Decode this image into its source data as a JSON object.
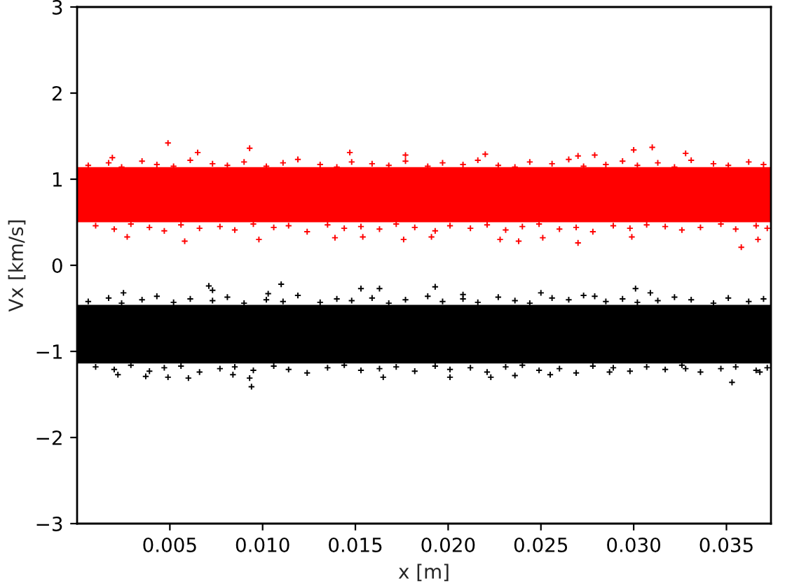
{
  "chart_data": {
    "type": "scatter",
    "xlabel": "x [m]",
    "ylabel": "Vx [km/s]",
    "xlim": [
      0,
      0.0374
    ],
    "ylim": [
      -3,
      3
    ],
    "xticks": [
      0.005,
      {
        "value": 0.01,
        "label": "0.010"
      },
      0.015,
      {
        "value": 0.02,
        "label": "0.020"
      },
      0.025,
      {
        "value": 0.03,
        "label": "0.030"
      },
      0.035
    ],
    "yticks": [
      {
        "value": -3,
        "label": "−3"
      },
      {
        "value": -2,
        "label": "−2"
      },
      {
        "value": -1,
        "label": "−1"
      },
      0,
      1,
      2,
      3
    ],
    "marker": "cross",
    "bands": [
      {
        "axis": "y",
        "from": 0.5,
        "to": 1.14,
        "color": "#ff0000"
      },
      {
        "axis": "y",
        "from": -1.14,
        "to": -0.46,
        "color": "#000000"
      }
    ],
    "series": [
      {
        "color": "#ff0000",
        "x": [
          0.0006,
          0.0017,
          0.0024,
          0.0035,
          0.0043,
          0.0052,
          0.0061,
          0.0073,
          0.0081,
          0.009,
          0.0102,
          0.0111,
          0.0119,
          0.0131,
          0.014,
          0.0148,
          0.0159,
          0.0168,
          0.0177,
          0.0189,
          0.0197,
          0.0208,
          0.0216,
          0.0227,
          0.0236,
          0.0244,
          0.0256,
          0.0265,
          0.0273,
          0.0285,
          0.0294,
          0.0302,
          0.0313,
          0.0322,
          0.0331,
          0.0343,
          0.0351,
          0.0362,
          0.037,
          0.001,
          0.002,
          0.0029,
          0.0039,
          0.0047,
          0.0056,
          0.0066,
          0.0077,
          0.0085,
          0.0095,
          0.0106,
          0.0114,
          0.0124,
          0.0135,
          0.0144,
          0.0153,
          0.0163,
          0.0172,
          0.0182,
          0.0193,
          0.0201,
          0.0212,
          0.0221,
          0.0231,
          0.024,
          0.0249,
          0.026,
          0.0269,
          0.0278,
          0.0289,
          0.0298,
          0.0307,
          0.0317,
          0.0326,
          0.0336,
          0.0347,
          0.0355,
          0.0366,
          0.0372,
          0.0049,
          0.0093,
          0.0065,
          0.0019,
          0.0147,
          0.0177,
          0.0058,
          0.0098,
          0.0139,
          0.0176,
          0.0027,
          0.0154,
          0.031,
          0.03,
          0.0328,
          0.022,
          0.0279,
          0.027,
          0.0358,
          0.0238,
          0.027,
          0.0367,
          0.0251,
          0.0299,
          0.0228,
          0.0191
        ],
        "values": [
          1.16,
          1.19,
          1.14,
          1.21,
          1.17,
          1.15,
          1.22,
          1.18,
          1.16,
          1.2,
          1.15,
          1.19,
          1.23,
          1.17,
          1.14,
          1.2,
          1.18,
          1.16,
          1.21,
          1.15,
          1.19,
          1.17,
          1.22,
          1.16,
          1.14,
          1.2,
          1.18,
          1.23,
          1.15,
          1.17,
          1.21,
          1.16,
          1.19,
          1.14,
          1.22,
          1.18,
          1.16,
          1.2,
          1.17,
          0.46,
          0.42,
          0.48,
          0.44,
          0.4,
          0.47,
          0.43,
          0.45,
          0.41,
          0.48,
          0.44,
          0.46,
          0.39,
          0.47,
          0.43,
          0.45,
          0.42,
          0.48,
          0.44,
          0.4,
          0.46,
          0.43,
          0.47,
          0.41,
          0.45,
          0.48,
          0.42,
          0.44,
          0.39,
          0.46,
          0.43,
          0.47,
          0.45,
          0.41,
          0.44,
          0.48,
          0.42,
          0.46,
          0.43,
          1.42,
          1.36,
          1.31,
          1.25,
          1.31,
          1.28,
          0.28,
          0.3,
          0.32,
          0.3,
          0.33,
          0.33,
          1.37,
          1.34,
          1.3,
          1.29,
          1.28,
          1.27,
          0.21,
          0.28,
          0.26,
          0.3,
          0.32,
          0.33,
          0.3,
          0.33
        ]
      },
      {
        "color": "#000000",
        "x": [
          0.0006,
          0.0017,
          0.0024,
          0.0035,
          0.0043,
          0.0052,
          0.0061,
          0.0073,
          0.0081,
          0.009,
          0.0102,
          0.0111,
          0.0119,
          0.0131,
          0.014,
          0.0148,
          0.0159,
          0.0168,
          0.0177,
          0.0189,
          0.0197,
          0.0208,
          0.0216,
          0.0227,
          0.0236,
          0.0244,
          0.0256,
          0.0265,
          0.0273,
          0.0285,
          0.0294,
          0.0302,
          0.0313,
          0.0322,
          0.0331,
          0.0343,
          0.0351,
          0.0362,
          0.037,
          0.001,
          0.002,
          0.0029,
          0.0039,
          0.0047,
          0.0056,
          0.0066,
          0.0077,
          0.0085,
          0.0095,
          0.0106,
          0.0114,
          0.0124,
          0.0135,
          0.0144,
          0.0153,
          0.0163,
          0.0172,
          0.0182,
          0.0193,
          0.0201,
          0.0212,
          0.0221,
          0.0231,
          0.024,
          0.0249,
          0.026,
          0.0269,
          0.0278,
          0.0289,
          0.0298,
          0.0307,
          0.0317,
          0.0326,
          0.0336,
          0.0347,
          0.0355,
          0.0366,
          0.0372,
          0.011,
          0.0071,
          0.0073,
          0.0153,
          0.0163,
          0.0103,
          0.0025,
          0.0094,
          0.0093,
          0.0049,
          0.006,
          0.0022,
          0.0165,
          0.0084,
          0.0037,
          0.0193,
          0.0301,
          0.025,
          0.0309,
          0.0208,
          0.0279,
          0.0353,
          0.0201,
          0.0223,
          0.0236,
          0.0287,
          0.0255,
          0.0328,
          0.0368
        ],
        "values": [
          -0.42,
          -0.38,
          -0.44,
          -0.4,
          -0.36,
          -0.43,
          -0.39,
          -0.41,
          -0.37,
          -0.44,
          -0.4,
          -0.42,
          -0.35,
          -0.43,
          -0.39,
          -0.41,
          -0.38,
          -0.44,
          -0.4,
          -0.36,
          -0.42,
          -0.39,
          -0.43,
          -0.37,
          -0.41,
          -0.44,
          -0.38,
          -0.4,
          -0.35,
          -0.42,
          -0.39,
          -0.43,
          -0.41,
          -0.37,
          -0.4,
          -0.44,
          -0.38,
          -0.42,
          -0.39,
          -1.18,
          -1.21,
          -1.16,
          -1.23,
          -1.19,
          -1.17,
          -1.24,
          -1.2,
          -1.18,
          -1.22,
          -1.17,
          -1.21,
          -1.25,
          -1.19,
          -1.16,
          -1.22,
          -1.2,
          -1.18,
          -1.23,
          -1.17,
          -1.21,
          -1.19,
          -1.24,
          -1.18,
          -1.16,
          -1.22,
          -1.2,
          -1.25,
          -1.17,
          -1.19,
          -1.23,
          -1.18,
          -1.21,
          -1.16,
          -1.24,
          -1.2,
          -1.18,
          -1.22,
          -1.19,
          -0.22,
          -0.24,
          -0.29,
          -0.27,
          -0.27,
          -0.33,
          -0.32,
          -1.41,
          -1.31,
          -1.3,
          -1.31,
          -1.27,
          -1.3,
          -1.27,
          -1.29,
          -0.25,
          -0.27,
          -0.32,
          -0.32,
          -0.34,
          -0.36,
          -1.36,
          -1.3,
          -1.3,
          -1.28,
          -1.24,
          -1.27,
          -1.2,
          -1.24
        ]
      }
    ]
  }
}
